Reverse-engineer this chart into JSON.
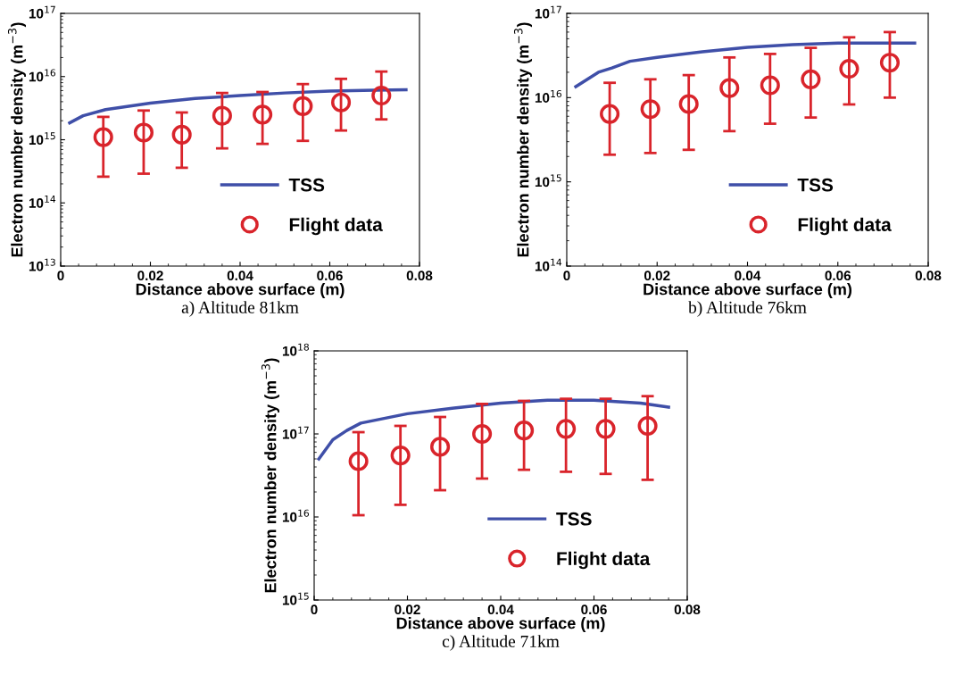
{
  "chart_data": [
    {
      "type": "line",
      "xlabel": "Distance above surface (m)",
      "ylabel": "Electron number density (m$^{−3}$)",
      "annotations": [
        "a) Altitude 81km"
      ],
      "log": "y",
      "grid": false,
      "legend": "lower right",
      "xlim": [
        0,
        0.08
      ],
      "xticks": [
        0,
        0.02,
        0.04,
        0.06,
        0.08
      ],
      "ylim": [
        10000000000000.0,
        1e+17
      ],
      "yticks": [
        {
          "value": 10000000000000.0,
          "label": "10$^{13}$"
        },
        {
          "value": 100000000000000.0,
          "label": "10$^{14}$"
        },
        {
          "value": 1000000000000000.0,
          "label": "10$^{15}$"
        },
        {
          "value": 1e+16,
          "label": "10$^{16}$"
        },
        {
          "value": 1e+17,
          "label": "10$^{17}$"
        }
      ],
      "series": [
        {
          "name": "TSS",
          "color": "#3f4fa8",
          "line_style": "solid",
          "marker": "none",
          "x": [
            0.002,
            0.005,
            0.01,
            0.02,
            0.03,
            0.04,
            0.05,
            0.06,
            0.07,
            0.077
          ],
          "values": [
            1850000000000000.0,
            2400000000000000.0,
            3000000000000000.0,
            3800000000000000.0,
            4500000000000000.0,
            5000000000000000.0,
            5500000000000000.0,
            5900000000000000.0,
            6100000000000000.0,
            6200000000000000.0
          ]
        },
        {
          "name": "Flight data",
          "type": "scatter",
          "color": "#d9242b",
          "marker": "circle",
          "x": [
            0.0095,
            0.0185,
            0.027,
            0.036,
            0.045,
            0.054,
            0.0625,
            0.0715
          ],
          "values": [
            1100000000000000.0,
            1300000000000000.0,
            1200000000000000.0,
            2400000000000000.0,
            2500000000000000.0,
            3400000000000000.0,
            3900000000000000.0,
            5000000000000000.0
          ],
          "errors": [
            [
              260000000000000.0,
              2300000000000000.0
            ],
            [
              290000000000000.0,
              2900000000000000.0
            ],
            [
              360000000000000.0,
              2700000000000000.0
            ],
            [
              730000000000000.0,
              5500000000000000.0
            ],
            [
              860000000000000.0,
              5700000000000000.0
            ],
            [
              960000000000000.0,
              7600000000000000.0
            ],
            [
              1400000000000000.0,
              9200000000000000.0
            ],
            [
              2100000000000000.0,
              1.2e+16
            ]
          ]
        }
      ]
    },
    {
      "type": "line",
      "xlabel": "Distance above surface (m)",
      "ylabel": "Electron number density (m$^{−3}$)",
      "annotations": [
        "b) Altitude 76km"
      ],
      "log": "y",
      "grid": false,
      "legend": "lower right",
      "xlim": [
        0,
        0.08
      ],
      "xticks": [
        0,
        0.02,
        0.04,
        0.06,
        0.08
      ],
      "ylim": [
        100000000000000.0,
        1e+17
      ],
      "yticks": [
        {
          "value": 100000000000000.0,
          "label": "10$^{14}$"
        },
        {
          "value": 1000000000000000.0,
          "label": "10$^{15}$"
        },
        {
          "value": 1e+16,
          "label": "10$^{16}$"
        },
        {
          "value": 1e+17,
          "label": "10$^{17}$"
        }
      ],
      "series": [
        {
          "name": "TSS",
          "color": "#3f4fa8",
          "line_style": "solid",
          "marker": "none",
          "x": [
            0.002,
            0.007,
            0.01,
            0.014,
            0.02,
            0.03,
            0.04,
            0.05,
            0.06,
            0.07,
            0.077
          ],
          "values": [
            1.35e+16,
            2e+16,
            2.25e+16,
            2.7e+16,
            3e+16,
            3.5e+16,
            3.95e+16,
            4.25e+16,
            4.45e+16,
            4.45e+16,
            4.45e+16
          ]
        },
        {
          "name": "Flight data",
          "type": "scatter",
          "color": "#d9242b",
          "marker": "circle",
          "x": [
            0.0095,
            0.0185,
            0.027,
            0.036,
            0.045,
            0.054,
            0.0625,
            0.0715
          ],
          "values": [
            6400000000000000.0,
            7300000000000000.0,
            8400000000000000.0,
            1.3e+16,
            1.4e+16,
            1.65e+16,
            2.2e+16,
            2.6e+16
          ],
          "errors": [
            [
              2100000000000000.0,
              1.5e+16
            ],
            [
              2200000000000000.0,
              1.65e+16
            ],
            [
              2400000000000000.0,
              1.85e+16
            ],
            [
              4000000000000000.0,
              3e+16
            ],
            [
              4900000000000000.0,
              3.3e+16
            ],
            [
              5800000000000000.0,
              3.9e+16
            ],
            [
              8300000000000000.0,
              5.2e+16
            ],
            [
              1e+16,
              6e+16
            ]
          ]
        }
      ]
    },
    {
      "type": "line",
      "xlabel": "Distance above surface (m)",
      "ylabel": "Electron number density (m$^{−3}$)",
      "annotations": [
        "c) Altitude 71km"
      ],
      "log": "y",
      "grid": false,
      "legend": "lower right",
      "xlim": [
        0,
        0.08
      ],
      "xticks": [
        0,
        0.02,
        0.04,
        0.06,
        0.08
      ],
      "ylim": [
        1000000000000000.0,
        1e+18
      ],
      "yticks": [
        {
          "value": 1000000000000000.0,
          "label": "10$^{15}$"
        },
        {
          "value": 1e+16,
          "label": "10$^{16}$"
        },
        {
          "value": 1e+17,
          "label": "10$^{17}$"
        },
        {
          "value": 1e+18,
          "label": "10$^{18}$"
        }
      ],
      "series": [
        {
          "name": "TSS",
          "color": "#3f4fa8",
          "line_style": "solid",
          "marker": "none",
          "x": [
            0.001,
            0.004,
            0.007,
            0.01,
            0.02,
            0.03,
            0.04,
            0.05,
            0.06,
            0.07,
            0.076
          ],
          "values": [
            5e+16,
            8.5e+16,
            1.1e+17,
            1.35e+17,
            1.75e+17,
            2.05e+17,
            2.35e+17,
            2.55e+17,
            2.55e+17,
            2.35e+17,
            2.1e+17
          ]
        },
        {
          "name": "Flight data",
          "type": "scatter",
          "color": "#d9242b",
          "marker": "circle",
          "x": [
            0.0095,
            0.0185,
            0.027,
            0.036,
            0.045,
            0.054,
            0.0625,
            0.0715
          ],
          "values": [
            4.7e+16,
            5.5e+16,
            7e+16,
            1e+17,
            1.1e+17,
            1.15e+17,
            1.15e+17,
            1.25e+17
          ],
          "errors": [
            [
              1.05e+16,
              1.05e+17
            ],
            [
              1.4e+16,
              1.25e+17
            ],
            [
              2.1e+16,
              1.6e+17
            ],
            [
              2.9e+16,
              2.3e+17
            ],
            [
              3.7e+16,
              2.5e+17
            ],
            [
              3.5e+16,
              2.65e+17
            ],
            [
              3.3e+16,
              2.65e+17
            ],
            [
              2.8e+16,
              2.85e+17
            ]
          ]
        }
      ]
    }
  ]
}
